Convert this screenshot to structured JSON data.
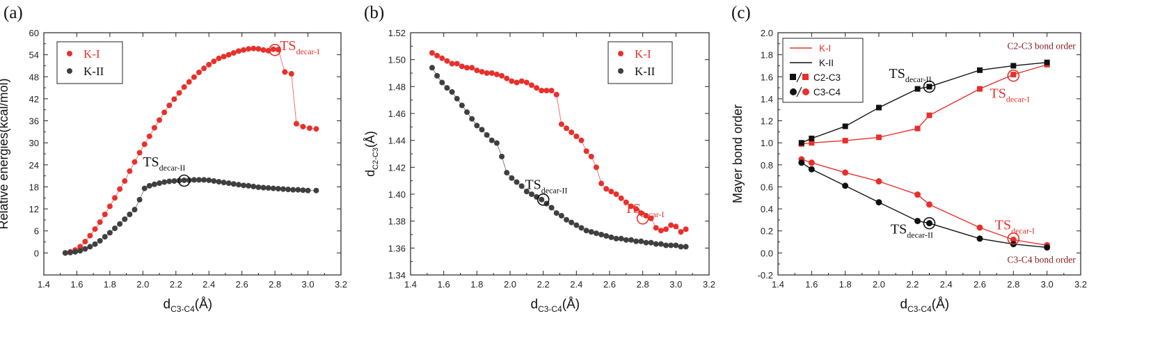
{
  "chart_data": [
    {
      "panel_label": "(a)",
      "type": "scatter",
      "xlabel": {
        "main": "d",
        "sub": "C3-C4",
        "unit": "(Å)"
      },
      "ylabel": "Relative energies(kcal/mol)",
      "xlim": [
        1.4,
        3.2
      ],
      "ylim": [
        -6,
        60
      ],
      "xticks": [
        "1.4",
        "1.6",
        "1.8",
        "2.0",
        "2.2",
        "2.4",
        "2.6",
        "2.8",
        "3.0",
        "3.2"
      ],
      "yticks": [
        "0",
        "6",
        "12",
        "18",
        "24",
        "30",
        "36",
        "42",
        "48",
        "54",
        "60"
      ],
      "legend": {
        "position": "top-left",
        "entries": [
          {
            "series": 0
          },
          {
            "series": 1
          }
        ]
      },
      "series": [
        {
          "name": "K-I",
          "color": "#e8302b",
          "line": true,
          "x": [
            1.53,
            1.56,
            1.59,
            1.62,
            1.65,
            1.68,
            1.71,
            1.74,
            1.77,
            1.8,
            1.83,
            1.86,
            1.89,
            1.92,
            1.95,
            1.98,
            2.01,
            2.04,
            2.07,
            2.1,
            2.13,
            2.16,
            2.19,
            2.22,
            2.25,
            2.28,
            2.31,
            2.34,
            2.37,
            2.4,
            2.43,
            2.46,
            2.49,
            2.52,
            2.55,
            2.58,
            2.61,
            2.64,
            2.67,
            2.7,
            2.73,
            2.76,
            2.79,
            2.82,
            2.86,
            2.9,
            2.93,
            2.97,
            3.01,
            3.05
          ],
          "y": [
            0,
            0.3,
            0.8,
            1.7,
            3.1,
            4.7,
            6.5,
            8.4,
            10.5,
            12.7,
            15.0,
            17.4,
            19.6,
            22.3,
            24.8,
            27.3,
            29.6,
            31.8,
            34.1,
            36.2,
            38.3,
            40.2,
            41.9,
            43.6,
            45.2,
            46.6,
            47.9,
            49.2,
            50.3,
            51.3,
            52.2,
            53.0,
            53.5,
            54.0,
            54.5,
            55.0,
            55.3,
            55.6,
            55.7,
            55.6,
            55.3,
            55.1,
            55.5,
            55.4,
            49.3,
            48.8,
            35.2,
            34.4,
            34.0,
            33.8
          ]
        },
        {
          "name": "K-II",
          "color": "#3f3f3f",
          "line": true,
          "x": [
            1.53,
            1.56,
            1.59,
            1.62,
            1.65,
            1.68,
            1.71,
            1.74,
            1.77,
            1.8,
            1.83,
            1.86,
            1.89,
            1.92,
            1.95,
            1.98,
            2.01,
            2.04,
            2.07,
            2.1,
            2.13,
            2.16,
            2.19,
            2.22,
            2.25,
            2.28,
            2.31,
            2.34,
            2.37,
            2.4,
            2.43,
            2.46,
            2.49,
            2.52,
            2.55,
            2.58,
            2.61,
            2.64,
            2.67,
            2.7,
            2.73,
            2.76,
            2.79,
            2.82,
            2.85,
            2.88,
            2.91,
            2.94,
            2.97,
            3.0,
            3.05
          ],
          "y": [
            0,
            0.1,
            0.3,
            0.6,
            1.1,
            1.7,
            2.4,
            3.3,
            4.4,
            5.5,
            6.7,
            7.9,
            9.2,
            10.5,
            11.8,
            14.5,
            17.6,
            18.3,
            18.7,
            19.0,
            19.3,
            19.5,
            19.6,
            19.7,
            19.8,
            19.8,
            19.9,
            19.9,
            19.9,
            19.8,
            19.6,
            19.4,
            19.2,
            19.0,
            18.8,
            18.6,
            18.4,
            18.3,
            18.1,
            17.9,
            17.8,
            17.7,
            17.6,
            17.5,
            17.4,
            17.3,
            17.2,
            17.2,
            17.1,
            17.0,
            17.0
          ]
        }
      ],
      "annotations": [
        {
          "main": "TS",
          "sub": "decar-I",
          "color": "#e8302b",
          "at": [
            2.8,
            55.3
          ],
          "text_at": [
            2.83,
            55.3
          ]
        },
        {
          "main": "TS",
          "sub": "decar-II",
          "color": "#111111",
          "at": [
            2.25,
            19.7
          ],
          "text_at": [
            2.0,
            23.6
          ]
        }
      ]
    },
    {
      "panel_label": "(b)",
      "type": "scatter",
      "xlabel": {
        "main": "d",
        "sub": "C3-C4",
        "unit": "(Å)"
      },
      "ylabel": {
        "main": "d",
        "sub": "C2-C3",
        "unit": "(Å)"
      },
      "xlim": [
        1.4,
        3.2
      ],
      "ylim": [
        1.34,
        1.52
      ],
      "xticks": [
        "1.4",
        "1.6",
        "1.8",
        "2.0",
        "2.2",
        "2.4",
        "2.6",
        "2.8",
        "3.0",
        "3.2"
      ],
      "yticks": [
        "1.34",
        "1.36",
        "1.38",
        "1.40",
        "1.42",
        "1.44",
        "1.46",
        "1.48",
        "1.50",
        "1.52"
      ],
      "legend": {
        "position": "top-right",
        "entries": [
          {
            "series": 0
          },
          {
            "series": 1
          }
        ]
      },
      "series": [
        {
          "name": "K-I",
          "color": "#e8302b",
          "line": true,
          "x": [
            1.53,
            1.56,
            1.59,
            1.62,
            1.65,
            1.68,
            1.71,
            1.74,
            1.77,
            1.8,
            1.83,
            1.86,
            1.89,
            1.92,
            1.95,
            1.98,
            2.01,
            2.04,
            2.07,
            2.1,
            2.13,
            2.16,
            2.19,
            2.22,
            2.25,
            2.28,
            2.31,
            2.34,
            2.37,
            2.4,
            2.43,
            2.46,
            2.49,
            2.52,
            2.55,
            2.58,
            2.61,
            2.64,
            2.67,
            2.7,
            2.73,
            2.76,
            2.79,
            2.82,
            2.85,
            2.88,
            2.91,
            2.94,
            2.97,
            3.0,
            3.03,
            3.06
          ],
          "y": [
            1.505,
            1.503,
            1.501,
            1.499,
            1.497,
            1.497,
            1.495,
            1.494,
            1.494,
            1.492,
            1.491,
            1.49,
            1.49,
            1.489,
            1.488,
            1.486,
            1.484,
            1.483,
            1.484,
            1.483,
            1.481,
            1.479,
            1.477,
            1.477,
            1.477,
            1.474,
            1.452,
            1.449,
            1.446,
            1.443,
            1.44,
            1.432,
            1.428,
            1.42,
            1.408,
            1.404,
            1.402,
            1.4,
            1.397,
            1.394,
            1.391,
            1.389,
            1.386,
            1.384,
            1.382,
            1.375,
            1.373,
            1.374,
            1.377,
            1.376,
            1.372,
            1.374
          ]
        },
        {
          "name": "K-II",
          "color": "#3f3f3f",
          "line": true,
          "x": [
            1.53,
            1.56,
            1.59,
            1.62,
            1.65,
            1.68,
            1.71,
            1.74,
            1.77,
            1.8,
            1.83,
            1.86,
            1.89,
            1.92,
            1.95,
            1.98,
            2.01,
            2.04,
            2.07,
            2.1,
            2.13,
            2.16,
            2.19,
            2.22,
            2.25,
            2.28,
            2.31,
            2.34,
            2.37,
            2.4,
            2.43,
            2.46,
            2.49,
            2.52,
            2.55,
            2.58,
            2.61,
            2.64,
            2.67,
            2.7,
            2.73,
            2.76,
            2.79,
            2.82,
            2.85,
            2.88,
            2.91,
            2.94,
            2.97,
            3.0,
            3.03,
            3.06
          ],
          "y": [
            1.494,
            1.488,
            1.483,
            1.479,
            1.476,
            1.471,
            1.466,
            1.461,
            1.456,
            1.451,
            1.448,
            1.444,
            1.44,
            1.438,
            1.428,
            1.416,
            1.412,
            1.409,
            1.406,
            1.402,
            1.4,
            1.398,
            1.396,
            1.393,
            1.39,
            1.386,
            1.384,
            1.381,
            1.379,
            1.377,
            1.375,
            1.373,
            1.372,
            1.371,
            1.37,
            1.369,
            1.368,
            1.367,
            1.367,
            1.366,
            1.366,
            1.365,
            1.365,
            1.364,
            1.364,
            1.363,
            1.363,
            1.362,
            1.362,
            1.362,
            1.361,
            1.361
          ]
        }
      ],
      "annotations": [
        {
          "main": "TS",
          "sub": "decar-I",
          "color": "#e8302b",
          "at": [
            2.8,
            1.382
          ],
          "text_at": [
            2.69,
            1.386
          ]
        },
        {
          "main": "TS",
          "sub": "decar-II",
          "color": "#111111",
          "at": [
            2.2,
            1.396
          ],
          "text_at": [
            2.09,
            1.404
          ]
        }
      ]
    },
    {
      "panel_label": "(c)",
      "type": "line",
      "xlabel": {
        "main": "d",
        "sub": "C3-C4",
        "unit": "(Å)"
      },
      "ylabel": "Mayer bond order",
      "xlim": [
        1.4,
        3.2
      ],
      "ylim": [
        -0.2,
        2.0
      ],
      "xticks": [
        "1.4",
        "1.6",
        "1.8",
        "2.0",
        "2.2",
        "2.4",
        "2.6",
        "2.8",
        "3.0",
        "3.2"
      ],
      "yticks": [
        "-0.2",
        "0.0",
        "0.2",
        "0.4",
        "0.6",
        "0.8",
        "1.0",
        "1.2",
        "1.4",
        "1.6",
        "1.8",
        "2.0"
      ],
      "legend": {
        "position": "top-left",
        "entries": [
          {
            "label": "K-I",
            "color": "#e8302b",
            "kind": "line"
          },
          {
            "label": "K-II",
            "color": "#111111",
            "kind": "line"
          },
          {
            "label": "C2-C3",
            "kind": "square-pair"
          },
          {
            "label": "C3-C4",
            "kind": "circle-pair"
          }
        ]
      },
      "series": [
        {
          "name": "K-I",
          "color": "#e8302b",
          "marker": "square",
          "x": [
            1.54,
            1.6,
            1.8,
            2.0,
            2.23,
            2.3,
            2.6,
            2.8,
            3.0
          ],
          "y": [
            0.99,
            1.0,
            1.02,
            1.05,
            1.13,
            1.25,
            1.49,
            1.62,
            1.71
          ]
        },
        {
          "name": "K-II",
          "color": "#111111",
          "marker": "square",
          "x": [
            1.54,
            1.6,
            1.8,
            2.0,
            2.23,
            2.3,
            2.6,
            2.8,
            3.0
          ],
          "y": [
            1.0,
            1.04,
            1.15,
            1.32,
            1.49,
            1.51,
            1.66,
            1.7,
            1.73
          ]
        },
        {
          "name": "K-I",
          "color": "#e8302b",
          "marker": "circle",
          "x": [
            1.54,
            1.6,
            1.8,
            2.0,
            2.23,
            2.3,
            2.6,
            2.8,
            3.0
          ],
          "y": [
            0.85,
            0.82,
            0.73,
            0.65,
            0.53,
            0.44,
            0.23,
            0.12,
            0.07
          ]
        },
        {
          "name": "K-II",
          "color": "#111111",
          "marker": "circle",
          "x": [
            1.54,
            1.6,
            1.8,
            2.0,
            2.23,
            2.3,
            2.6,
            2.8,
            3.0
          ],
          "y": [
            0.82,
            0.76,
            0.61,
            0.46,
            0.29,
            0.27,
            0.13,
            0.08,
            0.05
          ]
        }
      ],
      "annotations": [
        {
          "main": "TS",
          "sub": "decar-II",
          "color": "#111111",
          "at": [
            2.3,
            1.51
          ],
          "text_at": [
            2.06,
            1.59
          ]
        },
        {
          "main": "TS",
          "sub": "decar-I",
          "color": "#e8302b",
          "at": [
            2.8,
            1.61
          ],
          "text_at": [
            2.66,
            1.41
          ]
        },
        {
          "main": "TS",
          "sub": "decar-I",
          "color": "#e8302b",
          "at": [
            2.8,
            0.13
          ],
          "text_at": [
            2.69,
            0.215
          ]
        },
        {
          "main": "TS",
          "sub": "decar-II",
          "color": "#111111",
          "at": [
            2.3,
            0.27
          ],
          "text_at": [
            2.07,
            0.175
          ]
        }
      ],
      "text_notes": [
        {
          "text": "C2-C3 bond order",
          "color": "#8b1a1a",
          "at": [
            3.17,
            1.85
          ]
        },
        {
          "text": "C3-C4 bond order",
          "color": "#8b1a1a",
          "at": [
            3.17,
            -0.09
          ]
        }
      ]
    }
  ]
}
